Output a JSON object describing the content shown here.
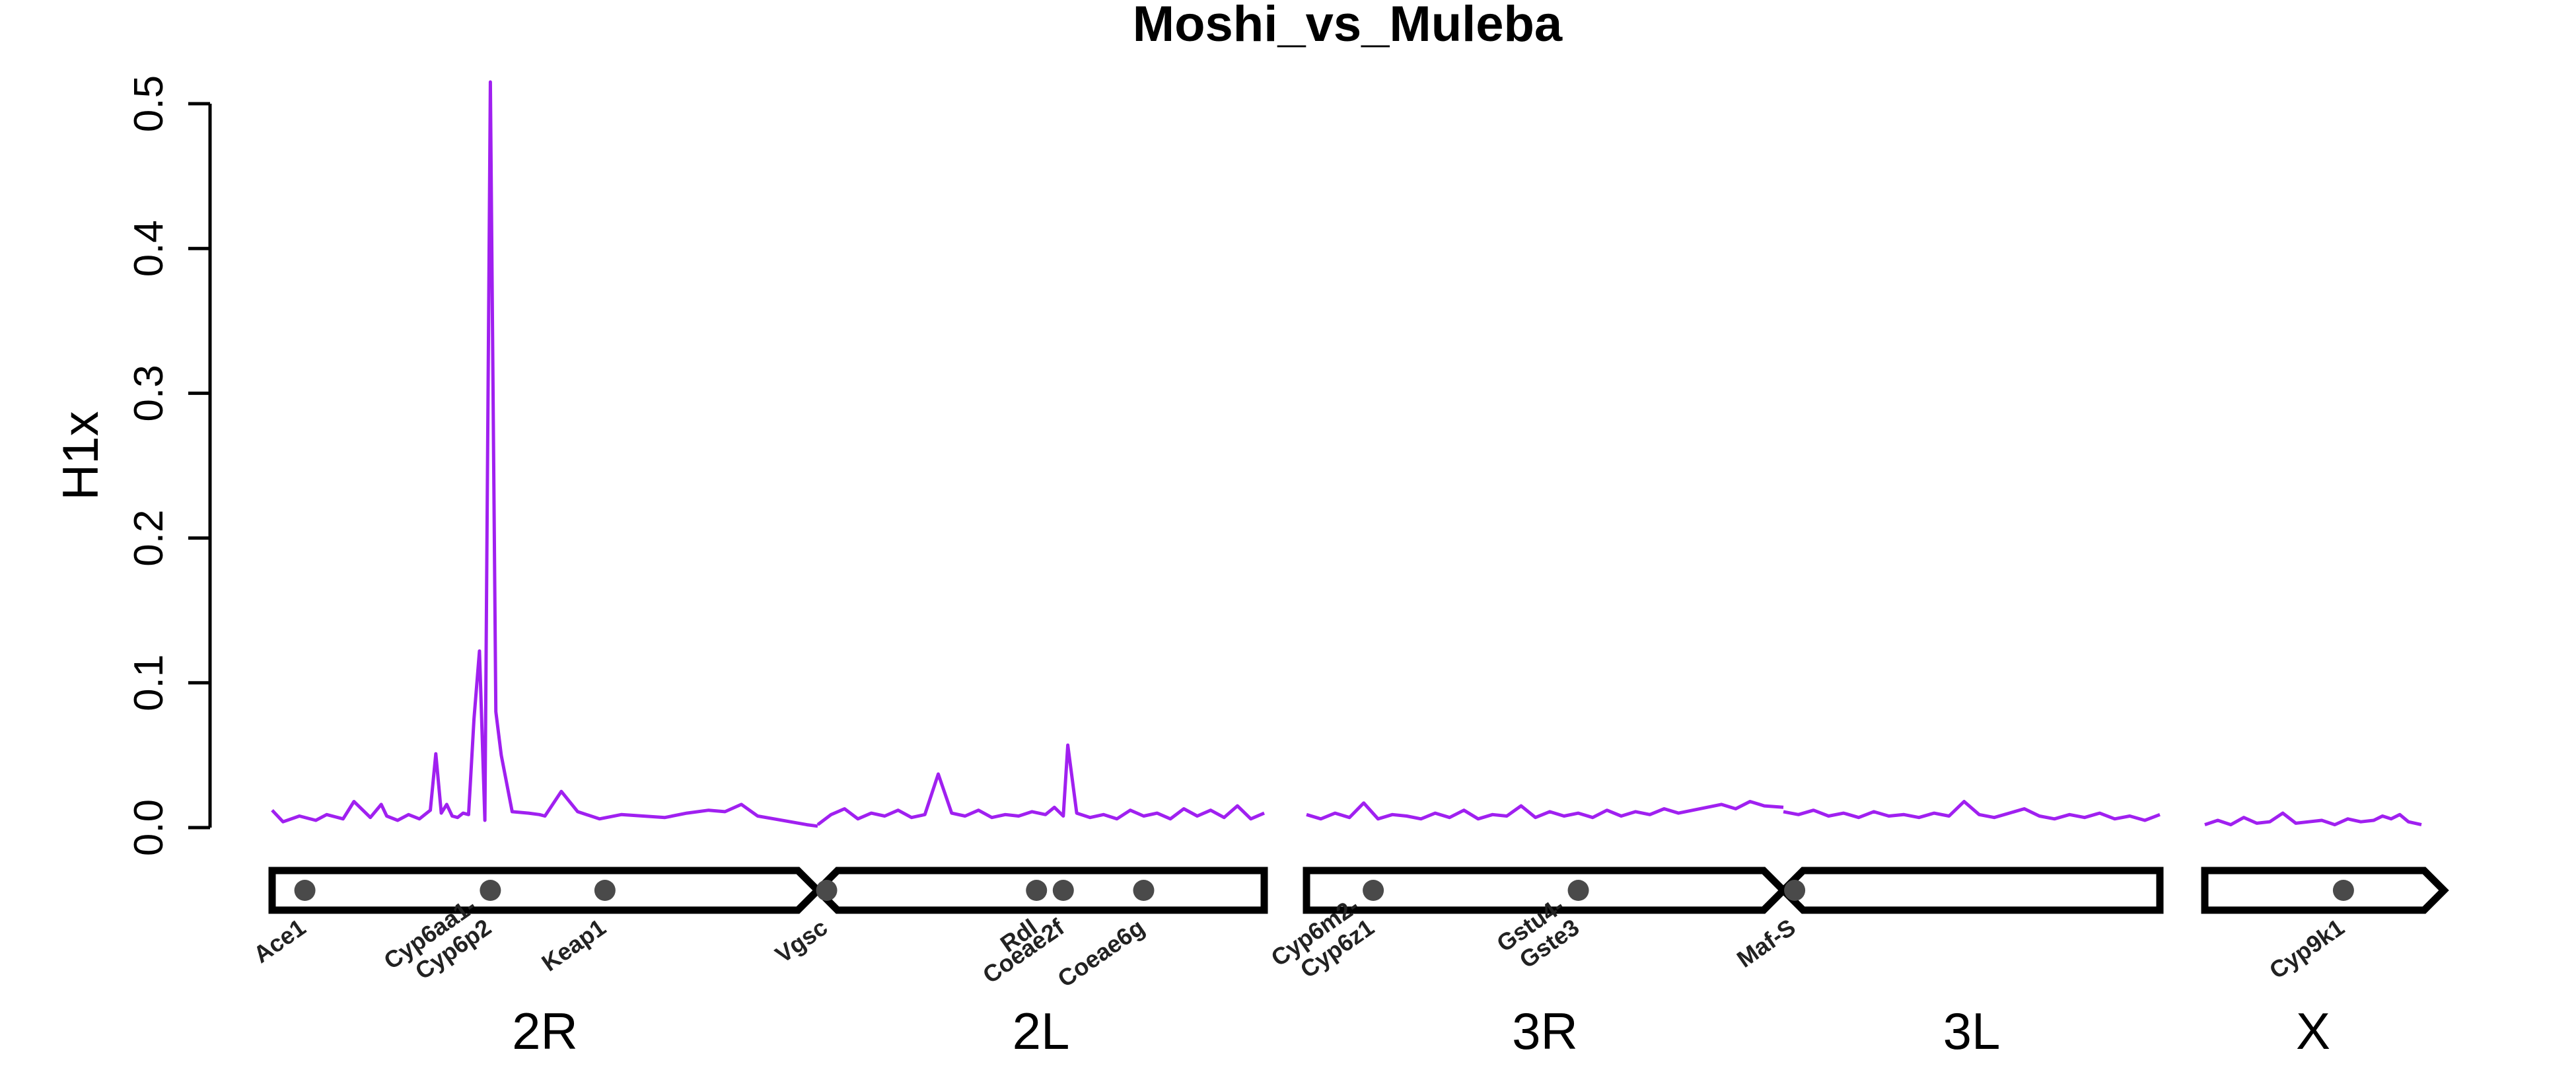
{
  "chart_data": {
    "type": "line",
    "title": "Moshi_vs_Muleba",
    "ylabel": "H1x",
    "xlabel": "",
    "ylim": [
      0,
      0.5
    ],
    "yticks": [
      "0.0",
      "0.1",
      "0.2",
      "0.3",
      "0.4",
      "0.5"
    ],
    "grid": false,
    "legend": "none",
    "colors": {
      "line": "#a020f0",
      "axis": "#000000",
      "gene_dot": "#4a4a4a"
    },
    "chromosomes": [
      "2R",
      "2L",
      "3R",
      "3L",
      "X"
    ],
    "series": [
      {
        "chromosome": "2R",
        "x": [
          0.0,
          0.02,
          0.05,
          0.08,
          0.1,
          0.13,
          0.15,
          0.18,
          0.2,
          0.21,
          0.23,
          0.25,
          0.27,
          0.29,
          0.3,
          0.31,
          0.32,
          0.33,
          0.34,
          0.35,
          0.36,
          0.37,
          0.38,
          0.39,
          0.4,
          0.41,
          0.42,
          0.44,
          0.47,
          0.49,
          0.5,
          0.53,
          0.56,
          0.6,
          0.64,
          0.68,
          0.72,
          0.76,
          0.8,
          0.83,
          0.86,
          0.89,
          0.92,
          0.95,
          0.98,
          1.0
        ],
        "values": [
          0.012,
          0.004,
          0.008,
          0.005,
          0.009,
          0.006,
          0.018,
          0.007,
          0.016,
          0.008,
          0.005,
          0.009,
          0.006,
          0.012,
          0.051,
          0.01,
          0.016,
          0.008,
          0.007,
          0.01,
          0.009,
          0.075,
          0.122,
          0.005,
          0.515,
          0.08,
          0.05,
          0.011,
          0.01,
          0.009,
          0.008,
          0.025,
          0.011,
          0.006,
          0.009,
          0.008,
          0.007,
          0.01,
          0.012,
          0.011,
          0.016,
          0.008,
          0.006,
          0.004,
          0.002,
          0.001
        ]
      },
      {
        "chromosome": "2L",
        "x": [
          0.0,
          0.03,
          0.06,
          0.09,
          0.12,
          0.15,
          0.18,
          0.21,
          0.24,
          0.27,
          0.3,
          0.33,
          0.36,
          0.39,
          0.42,
          0.45,
          0.48,
          0.51,
          0.53,
          0.55,
          0.56,
          0.58,
          0.61,
          0.64,
          0.67,
          0.7,
          0.73,
          0.76,
          0.79,
          0.82,
          0.85,
          0.88,
          0.91,
          0.94,
          0.97,
          1.0
        ],
        "values": [
          0.002,
          0.009,
          0.013,
          0.006,
          0.01,
          0.008,
          0.012,
          0.007,
          0.009,
          0.037,
          0.01,
          0.008,
          0.012,
          0.007,
          0.009,
          0.008,
          0.011,
          0.009,
          0.014,
          0.008,
          0.057,
          0.01,
          0.007,
          0.009,
          0.006,
          0.012,
          0.008,
          0.01,
          0.006,
          0.013,
          0.008,
          0.012,
          0.007,
          0.015,
          0.006,
          0.01
        ]
      },
      {
        "chromosome": "3R",
        "x": [
          0.0,
          0.03,
          0.06,
          0.09,
          0.12,
          0.15,
          0.18,
          0.21,
          0.24,
          0.27,
          0.3,
          0.33,
          0.36,
          0.39,
          0.42,
          0.45,
          0.48,
          0.51,
          0.54,
          0.57,
          0.6,
          0.63,
          0.66,
          0.69,
          0.72,
          0.75,
          0.78,
          0.81,
          0.84,
          0.87,
          0.9,
          0.93,
          0.96,
          1.0
        ],
        "values": [
          0.009,
          0.006,
          0.01,
          0.007,
          0.017,
          0.006,
          0.009,
          0.008,
          0.006,
          0.01,
          0.007,
          0.012,
          0.006,
          0.009,
          0.008,
          0.015,
          0.007,
          0.011,
          0.008,
          0.01,
          0.007,
          0.012,
          0.008,
          0.011,
          0.009,
          0.013,
          0.01,
          0.012,
          0.014,
          0.016,
          0.013,
          0.018,
          0.015,
          0.014
        ]
      },
      {
        "chromosome": "3L",
        "x": [
          0.0,
          0.04,
          0.08,
          0.12,
          0.16,
          0.2,
          0.24,
          0.28,
          0.32,
          0.36,
          0.4,
          0.44,
          0.48,
          0.52,
          0.56,
          0.6,
          0.64,
          0.68,
          0.72,
          0.76,
          0.8,
          0.84,
          0.88,
          0.92,
          0.96,
          1.0
        ],
        "values": [
          0.011,
          0.009,
          0.012,
          0.008,
          0.01,
          0.007,
          0.011,
          0.008,
          0.009,
          0.007,
          0.01,
          0.008,
          0.018,
          0.009,
          0.007,
          0.01,
          0.013,
          0.008,
          0.006,
          0.009,
          0.007,
          0.01,
          0.006,
          0.008,
          0.005,
          0.009
        ]
      },
      {
        "chromosome": "X",
        "x": [
          0.0,
          0.06,
          0.12,
          0.18,
          0.24,
          0.3,
          0.36,
          0.42,
          0.48,
          0.54,
          0.6,
          0.66,
          0.72,
          0.78,
          0.82,
          0.86,
          0.9,
          0.94,
          1.0
        ],
        "values": [
          0.002,
          0.005,
          0.002,
          0.007,
          0.003,
          0.004,
          0.01,
          0.003,
          0.004,
          0.005,
          0.002,
          0.006,
          0.004,
          0.005,
          0.008,
          0.006,
          0.009,
          0.004,
          0.002
        ]
      }
    ],
    "genes": [
      {
        "chromosome": "2R",
        "pos": 0.06,
        "label": [
          "Ace1"
        ]
      },
      {
        "chromosome": "2R",
        "pos": 0.4,
        "label": [
          "Cyp6aa1-",
          "Cyp6p2"
        ]
      },
      {
        "chromosome": "2R",
        "pos": 0.61,
        "label": [
          "Keap1"
        ]
      },
      {
        "chromosome": "2L",
        "pos": 0.02,
        "label": [
          "Vgsc"
        ]
      },
      {
        "chromosome": "2L",
        "pos": 0.49,
        "label": [
          "Rdl"
        ]
      },
      {
        "chromosome": "2L",
        "pos": 0.55,
        "label": [
          "Coeae2f"
        ]
      },
      {
        "chromosome": "2L",
        "pos": 0.73,
        "label": [
          "Coeae6g"
        ]
      },
      {
        "chromosome": "3R",
        "pos": 0.14,
        "label": [
          "Cyp6m2-",
          "Cyp6z1"
        ]
      },
      {
        "chromosome": "3R",
        "pos": 0.57,
        "label": [
          "Gstu4-",
          "Gste3"
        ]
      },
      {
        "chromosome": "3L",
        "pos": 0.03,
        "label": [
          "Maf-S"
        ]
      },
      {
        "chromosome": "X",
        "pos": 0.64,
        "label": [
          "Cyp9k1"
        ]
      }
    ]
  }
}
